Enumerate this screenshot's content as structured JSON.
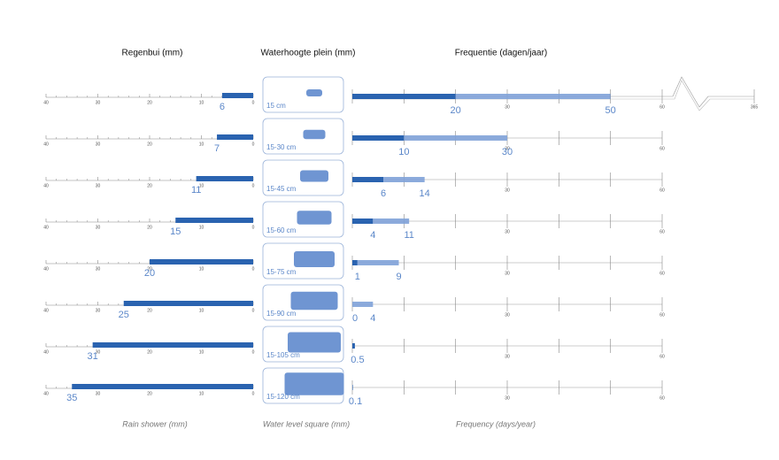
{
  "headers": [
    "Regenbui (mm)",
    "Waterhoogte plein (mm)",
    "Frequentie (dagen/jaar)"
  ],
  "footers": [
    "Rain shower (mm)",
    "Water level square (mm)",
    "Frequency (days/year)"
  ],
  "rain_axis": {
    "lim": [
      0,
      40
    ],
    "ticks": [
      40,
      30,
      20,
      10,
      0
    ],
    "minor_ticks": [
      2,
      4,
      6,
      8,
      12,
      14,
      16,
      18,
      22,
      24,
      26,
      28,
      32,
      34,
      36,
      38
    ]
  },
  "freq_axis": {
    "lim": [
      0,
      60
    ],
    "ticks": [
      30,
      60
    ],
    "minor_ticks": [
      10,
      20,
      40,
      50
    ],
    "break_tick": 365
  },
  "rows": [
    {
      "rain": 6,
      "level": "15 cm",
      "freq": [
        20,
        50
      ]
    },
    {
      "rain": 7,
      "level": "15-30 cm",
      "freq": [
        10,
        30
      ]
    },
    {
      "rain": 11,
      "level": "15-45 cm",
      "freq": [
        6,
        14
      ]
    },
    {
      "rain": 15,
      "level": "15-60 cm",
      "freq": [
        4,
        11
      ]
    },
    {
      "rain": 20,
      "level": "15-75 cm",
      "freq": [
        1,
        9
      ]
    },
    {
      "rain": 25,
      "level": "15-90 cm",
      "freq": [
        0,
        4
      ]
    },
    {
      "rain": 31,
      "level": "15-105 cm",
      "freq": [
        0.5
      ]
    },
    {
      "rain": 35,
      "level": "15-120 cm",
      "freq": [
        0.1
      ]
    }
  ]
}
